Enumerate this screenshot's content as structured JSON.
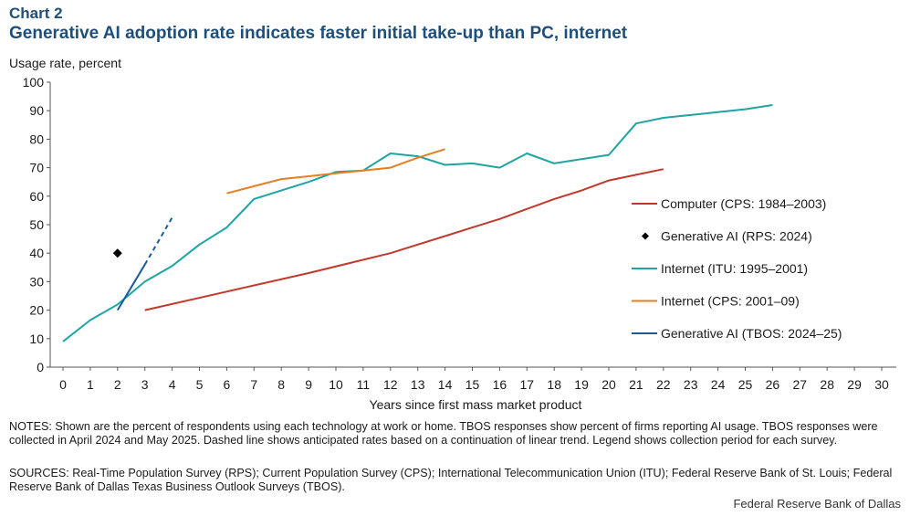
{
  "header": {
    "chart_number": "Chart 2",
    "title": "Generative AI adoption rate indicates faster initial take-up than PC, internet"
  },
  "chart_data": {
    "type": "line",
    "ylabel": "Usage rate, percent",
    "xlabel": "Years since first mass market product",
    "ylim": [
      0,
      100
    ],
    "xlim": [
      0,
      30
    ],
    "yticks": [
      0,
      10,
      20,
      30,
      40,
      50,
      60,
      70,
      80,
      90,
      100
    ],
    "xticks": [
      0,
      1,
      2,
      3,
      4,
      5,
      6,
      7,
      8,
      9,
      10,
      11,
      12,
      13,
      14,
      15,
      16,
      17,
      18,
      19,
      20,
      21,
      22,
      23,
      24,
      25,
      26,
      27,
      28,
      29,
      30
    ],
    "grid": false,
    "legend_position": "right",
    "series": [
      {
        "name": "Computer (CPS: 1984–2003)",
        "color": "#c0392b",
        "style": "line",
        "points": [
          [
            3,
            20
          ],
          [
            6,
            26.5
          ],
          [
            9,
            33
          ],
          [
            12,
            40
          ],
          [
            13,
            43
          ],
          [
            14,
            46
          ],
          [
            15,
            49
          ],
          [
            16,
            52
          ],
          [
            17,
            55.5
          ],
          [
            18,
            59
          ],
          [
            19,
            62
          ],
          [
            20,
            65.5
          ],
          [
            21,
            67.5
          ],
          [
            22,
            69.5
          ]
        ]
      },
      {
        "name": "Generative AI (RPS: 2024)",
        "color": "#000000",
        "style": "marker",
        "points": [
          [
            2,
            40
          ]
        ]
      },
      {
        "name": "Internet  (ITU:  1995–2001)",
        "color": "#1fa3a3",
        "style": "line",
        "points": [
          [
            0,
            9
          ],
          [
            1,
            16.5
          ],
          [
            2,
            22
          ],
          [
            3,
            30
          ],
          [
            4,
            35.5
          ],
          [
            5,
            43
          ],
          [
            6,
            49
          ],
          [
            7,
            59
          ],
          [
            8,
            62
          ],
          [
            9,
            65
          ],
          [
            10,
            68.5
          ],
          [
            11,
            69
          ],
          [
            12,
            75
          ],
          [
            13,
            74
          ],
          [
            14,
            71
          ],
          [
            15,
            71.5
          ],
          [
            16,
            70
          ],
          [
            17,
            75
          ],
          [
            18,
            71.5
          ],
          [
            19,
            73
          ],
          [
            20,
            74.5
          ],
          [
            21,
            85.5
          ],
          [
            22,
            87.5
          ],
          [
            23,
            88.5
          ],
          [
            24,
            89.5
          ],
          [
            25,
            90.5
          ],
          [
            26,
            92
          ]
        ]
      },
      {
        "name": "Internet  (CPS: 2001–09)",
        "color": "#e67e22",
        "style": "line",
        "points": [
          [
            6,
            61
          ],
          [
            7,
            63.5
          ],
          [
            8,
            66
          ],
          [
            9,
            67
          ],
          [
            10,
            68
          ],
          [
            11,
            69
          ],
          [
            12,
            70
          ],
          [
            13,
            73.5
          ],
          [
            14,
            76.5
          ]
        ]
      },
      {
        "name": "Generative AI (TBOS: 2024–25)",
        "color": "#1a5c96",
        "style": "line",
        "points": [
          [
            2,
            20
          ],
          [
            3,
            36
          ]
        ],
        "projection": [
          [
            3,
            36
          ],
          [
            4,
            52.5
          ]
        ]
      }
    ]
  },
  "notes": "NOTES: Shown are the percent of respondents using each technology at work or home. TBOS responses show percent of firms reporting AI usage. TBOS responses were collected in April 2024 and May 2025. Dashed line shows anticipated rates based on a continuation of  linear trend. Legend shows collection period for each survey.",
  "sources": "SOURCES: Real-Time Population Survey (RPS); Current Population Survey (CPS); International Telecommunication Union (ITU);  Federal Reserve Bank of St. Louis; Federal Reserve Bank of Dallas Texas Business Outlook Surveys (TBOS).",
  "footer": "Federal Reserve Bank of Dallas"
}
